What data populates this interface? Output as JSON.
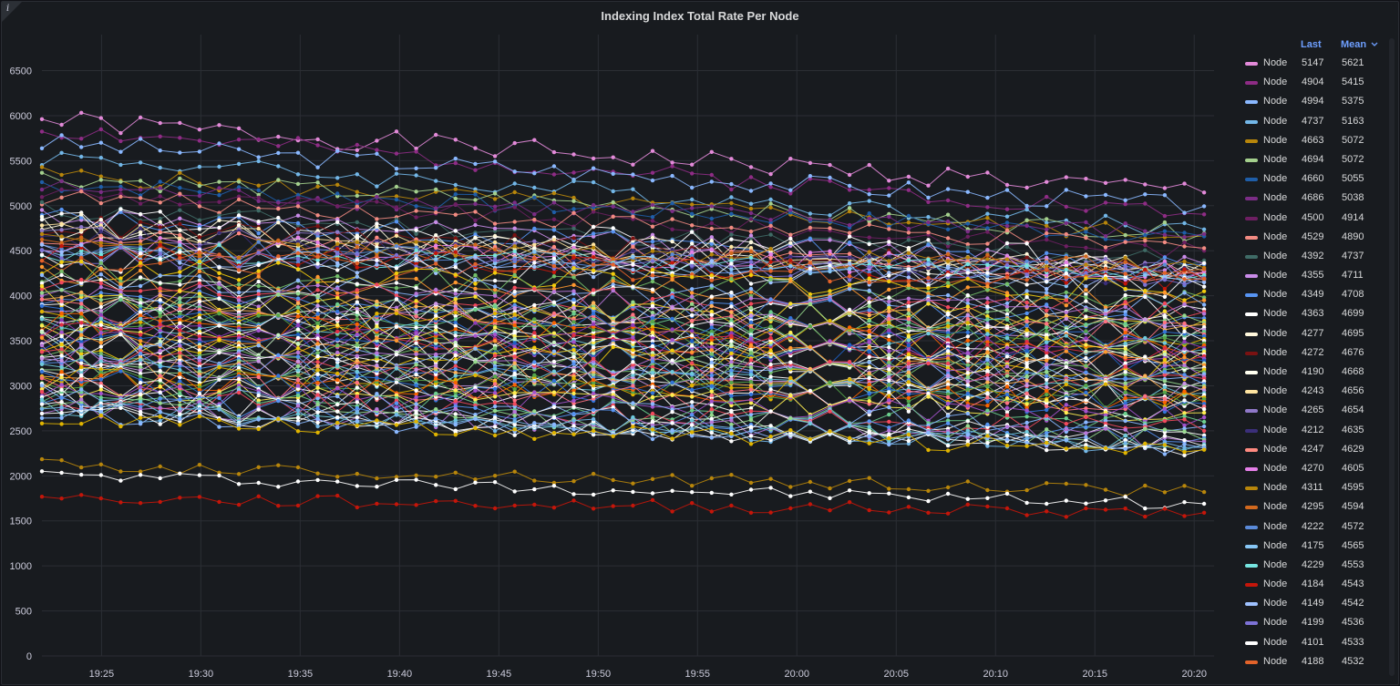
{
  "panel": {
    "title": "Indexing Index Total Rate Per Node",
    "info_icon": "i"
  },
  "legend": {
    "header_last": "Last",
    "header_mean": "Mean",
    "sort_icon": "chevron-down-icon",
    "entries": [
      {
        "name": "Node",
        "last": "5147",
        "mean": "5621",
        "color": "#e38ad9"
      },
      {
        "name": "Node",
        "last": "4904",
        "mean": "5415",
        "color": "#8e2c85"
      },
      {
        "name": "Node",
        "last": "4994",
        "mean": "5375",
        "color": "#8ab8ff"
      },
      {
        "name": "Node",
        "last": "4737",
        "mean": "5163",
        "color": "#73b7e8"
      },
      {
        "name": "Node",
        "last": "4663",
        "mean": "5072",
        "color": "#b8860b"
      },
      {
        "name": "Node",
        "last": "4694",
        "mean": "5072",
        "color": "#a4d08d"
      },
      {
        "name": "Node",
        "last": "4660",
        "mean": "5055",
        "color": "#1f5ea8"
      },
      {
        "name": "Node",
        "last": "4686",
        "mean": "5038",
        "color": "#7b2d86"
      },
      {
        "name": "Node",
        "last": "4500",
        "mean": "4914",
        "color": "#6d1f62"
      },
      {
        "name": "Node",
        "last": "4529",
        "mean": "4890",
        "color": "#f28b82"
      },
      {
        "name": "Node",
        "last": "4392",
        "mean": "4737",
        "color": "#3f6b66"
      },
      {
        "name": "Node",
        "last": "4355",
        "mean": "4711",
        "color": "#c98be8"
      },
      {
        "name": "Node",
        "last": "4349",
        "mean": "4708",
        "color": "#5794f2"
      },
      {
        "name": "Node",
        "last": "4363",
        "mean": "4699",
        "color": "#ffffff"
      },
      {
        "name": "Node",
        "last": "4277",
        "mean": "4695",
        "color": "#fff8dc"
      },
      {
        "name": "Node",
        "last": "4272",
        "mean": "4676",
        "color": "#7a1212"
      },
      {
        "name": "Node",
        "last": "4190",
        "mean": "4668",
        "color": "#fffff0"
      },
      {
        "name": "Node",
        "last": "4243",
        "mean": "4656",
        "color": "#ffe4a0"
      },
      {
        "name": "Node",
        "last": "4265",
        "mean": "4654",
        "color": "#8f78c8"
      },
      {
        "name": "Node",
        "last": "4212",
        "mean": "4635",
        "color": "#3b2f7a"
      },
      {
        "name": "Node",
        "last": "4247",
        "mean": "4629",
        "color": "#ff8a80"
      },
      {
        "name": "Node",
        "last": "4270",
        "mean": "4605",
        "color": "#e57fe8"
      },
      {
        "name": "Node",
        "last": "4311",
        "mean": "4595",
        "color": "#b8860b"
      },
      {
        "name": "Node",
        "last": "4295",
        "mean": "4594",
        "color": "#d2691e"
      },
      {
        "name": "Node",
        "last": "4222",
        "mean": "4572",
        "color": "#5a8ad8"
      },
      {
        "name": "Node",
        "last": "4175",
        "mean": "4565",
        "color": "#87c6f5"
      },
      {
        "name": "Node",
        "last": "4229",
        "mean": "4553",
        "color": "#76e5e0"
      },
      {
        "name": "Node",
        "last": "4184",
        "mean": "4543",
        "color": "#c4160a"
      },
      {
        "name": "Node",
        "last": "4149",
        "mean": "4542",
        "color": "#9ec1ff"
      },
      {
        "name": "Node",
        "last": "4199",
        "mean": "4536",
        "color": "#7d72d6"
      },
      {
        "name": "Node",
        "last": "4101",
        "mean": "4533",
        "color": "#ffffff"
      },
      {
        "name": "Node",
        "last": "4188",
        "mean": "4532",
        "color": "#e2632a"
      }
    ]
  },
  "chart_data": {
    "type": "line",
    "title": "Indexing Index Total Rate Per Node",
    "xlabel": "",
    "ylabel": "",
    "x_ticks": [
      "19:25",
      "19:30",
      "19:35",
      "19:40",
      "19:45",
      "19:50",
      "19:55",
      "20:00",
      "20:05",
      "20:10",
      "20:15",
      "20:20"
    ],
    "x_range_min": [
      22,
      81
    ],
    "x_tick_min": [
      25,
      30,
      35,
      40,
      45,
      50,
      55,
      60,
      65,
      70,
      75,
      80
    ],
    "y_ticks": [
      "0",
      "500",
      "1000",
      "1500",
      "2000",
      "2500",
      "3000",
      "3500",
      "4000",
      "4500",
      "5000",
      "5500",
      "6000",
      "6500"
    ],
    "ylim": [
      0,
      6900
    ],
    "grid": true,
    "legend_position": "right",
    "series": [
      {
        "name": "Node",
        "start": 5950,
        "end": 5147,
        "seed": 1,
        "noise": 120,
        "color": "#e38ad9"
      },
      {
        "name": "Node",
        "start": 5850,
        "end": 4904,
        "seed": 2,
        "noise": 110,
        "color": "#8e2c85"
      },
      {
        "name": "Node",
        "start": 5700,
        "end": 4994,
        "seed": 3,
        "noise": 110,
        "color": "#8ab8ff"
      },
      {
        "name": "Node",
        "start": 5550,
        "end": 4737,
        "seed": 4,
        "noise": 110,
        "color": "#73b7e8"
      },
      {
        "name": "Node",
        "start": 5350,
        "end": 4663,
        "seed": 5,
        "noise": 100,
        "color": "#b8860b"
      },
      {
        "name": "Node",
        "start": 5320,
        "end": 4694,
        "seed": 6,
        "noise": 100,
        "color": "#a4d08d"
      },
      {
        "name": "Node",
        "start": 5250,
        "end": 4660,
        "seed": 7,
        "noise": 100,
        "color": "#1f5ea8"
      },
      {
        "name": "Node",
        "start": 5200,
        "end": 4686,
        "seed": 8,
        "noise": 100,
        "color": "#7b2d86"
      },
      {
        "name": "Node",
        "start": 5150,
        "end": 4500,
        "seed": 9,
        "noise": 100,
        "color": "#6d1f62"
      },
      {
        "name": "Node",
        "start": 5100,
        "end": 4529,
        "seed": 10,
        "noise": 100,
        "color": "#f28b82"
      },
      {
        "name": "Node",
        "start": 4950,
        "end": 4392,
        "seed": 11,
        "noise": 110,
        "color": "#3f6b66"
      },
      {
        "name": "Node",
        "start": 4900,
        "end": 4355,
        "seed": 12,
        "noise": 110,
        "color": "#c98be8"
      },
      {
        "name": "Node",
        "start": 4880,
        "end": 4349,
        "seed": 13,
        "noise": 110,
        "color": "#5794f2"
      },
      {
        "name": "Node",
        "start": 4870,
        "end": 4363,
        "seed": 14,
        "noise": 140,
        "color": "#ffffff"
      },
      {
        "name": "Node",
        "start": 4800,
        "end": 4277,
        "seed": 15,
        "noise": 130,
        "color": "#fff8dc"
      },
      {
        "name": "Node",
        "start": 4780,
        "end": 4272,
        "seed": 16,
        "noise": 120,
        "color": "#7a1212"
      },
      {
        "name": "Node",
        "start": 4760,
        "end": 4190,
        "seed": 17,
        "noise": 140,
        "color": "#fffff0"
      },
      {
        "name": "Node",
        "start": 4720,
        "end": 4243,
        "seed": 18,
        "noise": 120,
        "color": "#ffe4a0"
      },
      {
        "name": "Node",
        "start": 4700,
        "end": 4265,
        "seed": 19,
        "noise": 120,
        "color": "#8f78c8"
      },
      {
        "name": "Node",
        "start": 4680,
        "end": 4212,
        "seed": 20,
        "noise": 120,
        "color": "#3b2f7a"
      },
      {
        "name": "Node",
        "start": 4640,
        "end": 4247,
        "seed": 21,
        "noise": 120,
        "color": "#ff8a80"
      },
      {
        "name": "Node",
        "start": 4600,
        "end": 4270,
        "seed": 22,
        "noise": 120,
        "color": "#e57fe8"
      },
      {
        "name": "Node",
        "start": 4580,
        "end": 4311,
        "seed": 23,
        "noise": 120,
        "color": "#b8860b"
      },
      {
        "name": "Node",
        "start": 4560,
        "end": 4295,
        "seed": 24,
        "noise": 120,
        "color": "#d2691e"
      },
      {
        "name": "Node",
        "start": 4540,
        "end": 4222,
        "seed": 25,
        "noise": 120,
        "color": "#5a8ad8"
      },
      {
        "name": "Node",
        "start": 4520,
        "end": 4175,
        "seed": 26,
        "noise": 120,
        "color": "#87c6f5"
      },
      {
        "name": "Node",
        "start": 4500,
        "end": 4229,
        "seed": 27,
        "noise": 120,
        "color": "#76e5e0"
      },
      {
        "name": "Node",
        "start": 4480,
        "end": 4184,
        "seed": 28,
        "noise": 120,
        "color": "#c4160a"
      },
      {
        "name": "Node",
        "start": 4460,
        "end": 4149,
        "seed": 29,
        "noise": 120,
        "color": "#9ec1ff"
      },
      {
        "name": "Node",
        "start": 4440,
        "end": 4199,
        "seed": 30,
        "noise": 120,
        "color": "#7d72d6"
      },
      {
        "name": "Node",
        "start": 4420,
        "end": 4101,
        "seed": 31,
        "noise": 140,
        "color": "#ffffff"
      },
      {
        "name": "Node",
        "start": 4400,
        "end": 4188,
        "seed": 32,
        "noise": 120,
        "color": "#e2632a"
      },
      {
        "name": "Node",
        "start": 4300,
        "end": 4050,
        "seed": 33,
        "noise": 130,
        "color": "#f2cc0c"
      },
      {
        "name": "Node",
        "start": 4250,
        "end": 3980,
        "seed": 34,
        "noise": 130,
        "color": "#73bf69"
      },
      {
        "name": "Node",
        "start": 4200,
        "end": 3950,
        "seed": 35,
        "noise": 130,
        "color": "#ff9830"
      },
      {
        "name": "Node",
        "start": 4150,
        "end": 3900,
        "seed": 36,
        "noise": 130,
        "color": "#8ab8ff"
      },
      {
        "name": "Node",
        "start": 4100,
        "end": 3850,
        "seed": 37,
        "noise": 140,
        "color": "#ffffff"
      },
      {
        "name": "Node",
        "start": 4080,
        "end": 3820,
        "seed": 38,
        "noise": 130,
        "color": "#f2495c"
      },
      {
        "name": "Node",
        "start": 4050,
        "end": 3800,
        "seed": 39,
        "noise": 130,
        "color": "#b877d9"
      },
      {
        "name": "Node",
        "start": 4000,
        "end": 3750,
        "seed": 40,
        "noise": 130,
        "color": "#5794f2"
      },
      {
        "name": "Node",
        "start": 3980,
        "end": 3720,
        "seed": 41,
        "noise": 130,
        "color": "#fade2a"
      },
      {
        "name": "Node",
        "start": 3950,
        "end": 3700,
        "seed": 42,
        "noise": 130,
        "color": "#96d98d"
      },
      {
        "name": "Node",
        "start": 3920,
        "end": 3680,
        "seed": 43,
        "noise": 130,
        "color": "#ffb357"
      },
      {
        "name": "Node",
        "start": 3900,
        "end": 3650,
        "seed": 44,
        "noise": 140,
        "color": "#ffffff"
      },
      {
        "name": "Node",
        "start": 3870,
        "end": 3620,
        "seed": 45,
        "noise": 130,
        "color": "#ca95e5"
      },
      {
        "name": "Node",
        "start": 3850,
        "end": 3600,
        "seed": 46,
        "noise": 130,
        "color": "#6ccf8e"
      },
      {
        "name": "Node",
        "start": 3830,
        "end": 3570,
        "seed": 47,
        "noise": 130,
        "color": "#ff7383"
      },
      {
        "name": "Node",
        "start": 3800,
        "end": 3550,
        "seed": 48,
        "noise": 130,
        "color": "#3274d9"
      },
      {
        "name": "Node",
        "start": 3780,
        "end": 3520,
        "seed": 49,
        "noise": 130,
        "color": "#e0b400"
      },
      {
        "name": "Node",
        "start": 3750,
        "end": 3500,
        "seed": 50,
        "noise": 140,
        "color": "#ffffff"
      },
      {
        "name": "Node",
        "start": 3720,
        "end": 3470,
        "seed": 51,
        "noise": 130,
        "color": "#56a64b"
      },
      {
        "name": "Node",
        "start": 3700,
        "end": 3450,
        "seed": 52,
        "noise": 130,
        "color": "#fa6400"
      },
      {
        "name": "Node",
        "start": 3680,
        "end": 3420,
        "seed": 53,
        "noise": 130,
        "color": "#8f3bb8"
      },
      {
        "name": "Node",
        "start": 3650,
        "end": 3400,
        "seed": 54,
        "noise": 130,
        "color": "#6ecadc"
      },
      {
        "name": "Node",
        "start": 3620,
        "end": 3380,
        "seed": 55,
        "noise": 130,
        "color": "#ffee52"
      },
      {
        "name": "Node",
        "start": 3600,
        "end": 3350,
        "seed": 56,
        "noise": 140,
        "color": "#ffffff"
      },
      {
        "name": "Node",
        "start": 3580,
        "end": 3330,
        "seed": 57,
        "noise": 130,
        "color": "#e02f44"
      },
      {
        "name": "Node",
        "start": 3550,
        "end": 3300,
        "seed": 58,
        "noise": 130,
        "color": "#a352cc"
      },
      {
        "name": "Node",
        "start": 3520,
        "end": 3280,
        "seed": 59,
        "noise": 130,
        "color": "#1f60c4"
      },
      {
        "name": "Node",
        "start": 3500,
        "end": 3250,
        "seed": 60,
        "noise": 130,
        "color": "#c8f2c2"
      },
      {
        "name": "Node",
        "start": 3480,
        "end": 3230,
        "seed": 61,
        "noise": 130,
        "color": "#ff9830"
      },
      {
        "name": "Node",
        "start": 3450,
        "end": 3200,
        "seed": 62,
        "noise": 140,
        "color": "#ffffff"
      },
      {
        "name": "Node",
        "start": 3420,
        "end": 3180,
        "seed": 63,
        "noise": 130,
        "color": "#f2cc0c"
      },
      {
        "name": "Node",
        "start": 3400,
        "end": 3150,
        "seed": 64,
        "noise": 130,
        "color": "#73bf69"
      },
      {
        "name": "Node",
        "start": 3380,
        "end": 3130,
        "seed": 65,
        "noise": 130,
        "color": "#8ab8ff"
      },
      {
        "name": "Node",
        "start": 3350,
        "end": 3100,
        "seed": 66,
        "noise": 130,
        "color": "#b877d9"
      },
      {
        "name": "Node",
        "start": 3320,
        "end": 3080,
        "seed": 67,
        "noise": 130,
        "color": "#f2495c"
      },
      {
        "name": "Node",
        "start": 3300,
        "end": 3050,
        "seed": 68,
        "noise": 140,
        "color": "#ffffff"
      },
      {
        "name": "Node",
        "start": 3280,
        "end": 3020,
        "seed": 69,
        "noise": 130,
        "color": "#5794f2"
      },
      {
        "name": "Node",
        "start": 3250,
        "end": 3000,
        "seed": 70,
        "noise": 130,
        "color": "#96d98d"
      },
      {
        "name": "Node",
        "start": 3220,
        "end": 2980,
        "seed": 71,
        "noise": 130,
        "color": "#ffb357"
      },
      {
        "name": "Node",
        "start": 3200,
        "end": 2950,
        "seed": 72,
        "noise": 130,
        "color": "#ca95e5"
      },
      {
        "name": "Node",
        "start": 3180,
        "end": 2920,
        "seed": 73,
        "noise": 130,
        "color": "#6ecadc"
      },
      {
        "name": "Node",
        "start": 3150,
        "end": 2900,
        "seed": 74,
        "noise": 140,
        "color": "#ffffff"
      },
      {
        "name": "Node",
        "start": 3120,
        "end": 2870,
        "seed": 75,
        "noise": 130,
        "color": "#e0b400"
      },
      {
        "name": "Node",
        "start": 3100,
        "end": 2850,
        "seed": 76,
        "noise": 130,
        "color": "#56a64b"
      },
      {
        "name": "Node",
        "start": 3080,
        "end": 2820,
        "seed": 77,
        "noise": 130,
        "color": "#fa6400"
      },
      {
        "name": "Node",
        "start": 3050,
        "end": 2800,
        "seed": 78,
        "noise": 130,
        "color": "#3274d9"
      },
      {
        "name": "Node",
        "start": 3020,
        "end": 2770,
        "seed": 79,
        "noise": 130,
        "color": "#ff7383"
      },
      {
        "name": "Node",
        "start": 3000,
        "end": 2740,
        "seed": 80,
        "noise": 140,
        "color": "#ffffff"
      },
      {
        "name": "Node",
        "start": 2980,
        "end": 2700,
        "seed": 81,
        "noise": 120,
        "color": "#ffee52"
      },
      {
        "name": "Node",
        "start": 2950,
        "end": 2650,
        "seed": 82,
        "noise": 120,
        "color": "#a352cc"
      },
      {
        "name": "Node",
        "start": 2920,
        "end": 2600,
        "seed": 83,
        "noise": 120,
        "color": "#6ccf8e"
      },
      {
        "name": "Node",
        "start": 2900,
        "end": 2550,
        "seed": 84,
        "noise": 120,
        "color": "#8ab8ff"
      },
      {
        "name": "Node",
        "start": 2870,
        "end": 2500,
        "seed": 85,
        "noise": 120,
        "color": "#f2495c"
      },
      {
        "name": "Node",
        "start": 2850,
        "end": 2450,
        "seed": 86,
        "noise": 120,
        "color": "#ffffff"
      },
      {
        "name": "Node",
        "start": 2820,
        "end": 2420,
        "seed": 87,
        "noise": 110,
        "color": "#5794f2"
      },
      {
        "name": "Node",
        "start": 2800,
        "end": 2400,
        "seed": 88,
        "noise": 110,
        "color": "#96d98d"
      },
      {
        "name": "Node",
        "start": 2780,
        "end": 2380,
        "seed": 89,
        "noise": 110,
        "color": "#b877d9"
      },
      {
        "name": "Node",
        "start": 2760,
        "end": 2350,
        "seed": 90,
        "noise": 100,
        "color": "#6ecadc"
      },
      {
        "name": "Node",
        "start": 2740,
        "end": 2330,
        "seed": 91,
        "noise": 100,
        "color": "#ffffff"
      },
      {
        "name": "Node",
        "start": 2720,
        "end": 2320,
        "seed": 92,
        "noise": 100,
        "color": "#73b7e8"
      },
      {
        "name": "Node",
        "start": 2700,
        "end": 2300,
        "seed": 93,
        "noise": 90,
        "color": "#ffffff"
      },
      {
        "name": "Node",
        "start": 2680,
        "end": 2310,
        "seed": 94,
        "noise": 90,
        "color": "#8ab8ff"
      },
      {
        "name": "Node",
        "start": 2650,
        "end": 2290,
        "seed": 95,
        "noise": 90,
        "color": "#e0b400"
      },
      {
        "name": "Node",
        "start": 2120,
        "end": 1820,
        "seed": 96,
        "noise": 70,
        "color": "#b8860b"
      },
      {
        "name": "Node",
        "start": 2010,
        "end": 1690,
        "seed": 97,
        "noise": 70,
        "color": "#ffffff"
      },
      {
        "name": "Node",
        "start": 1750,
        "end": 1590,
        "seed": 98,
        "noise": 70,
        "color": "#c4160a"
      }
    ]
  }
}
